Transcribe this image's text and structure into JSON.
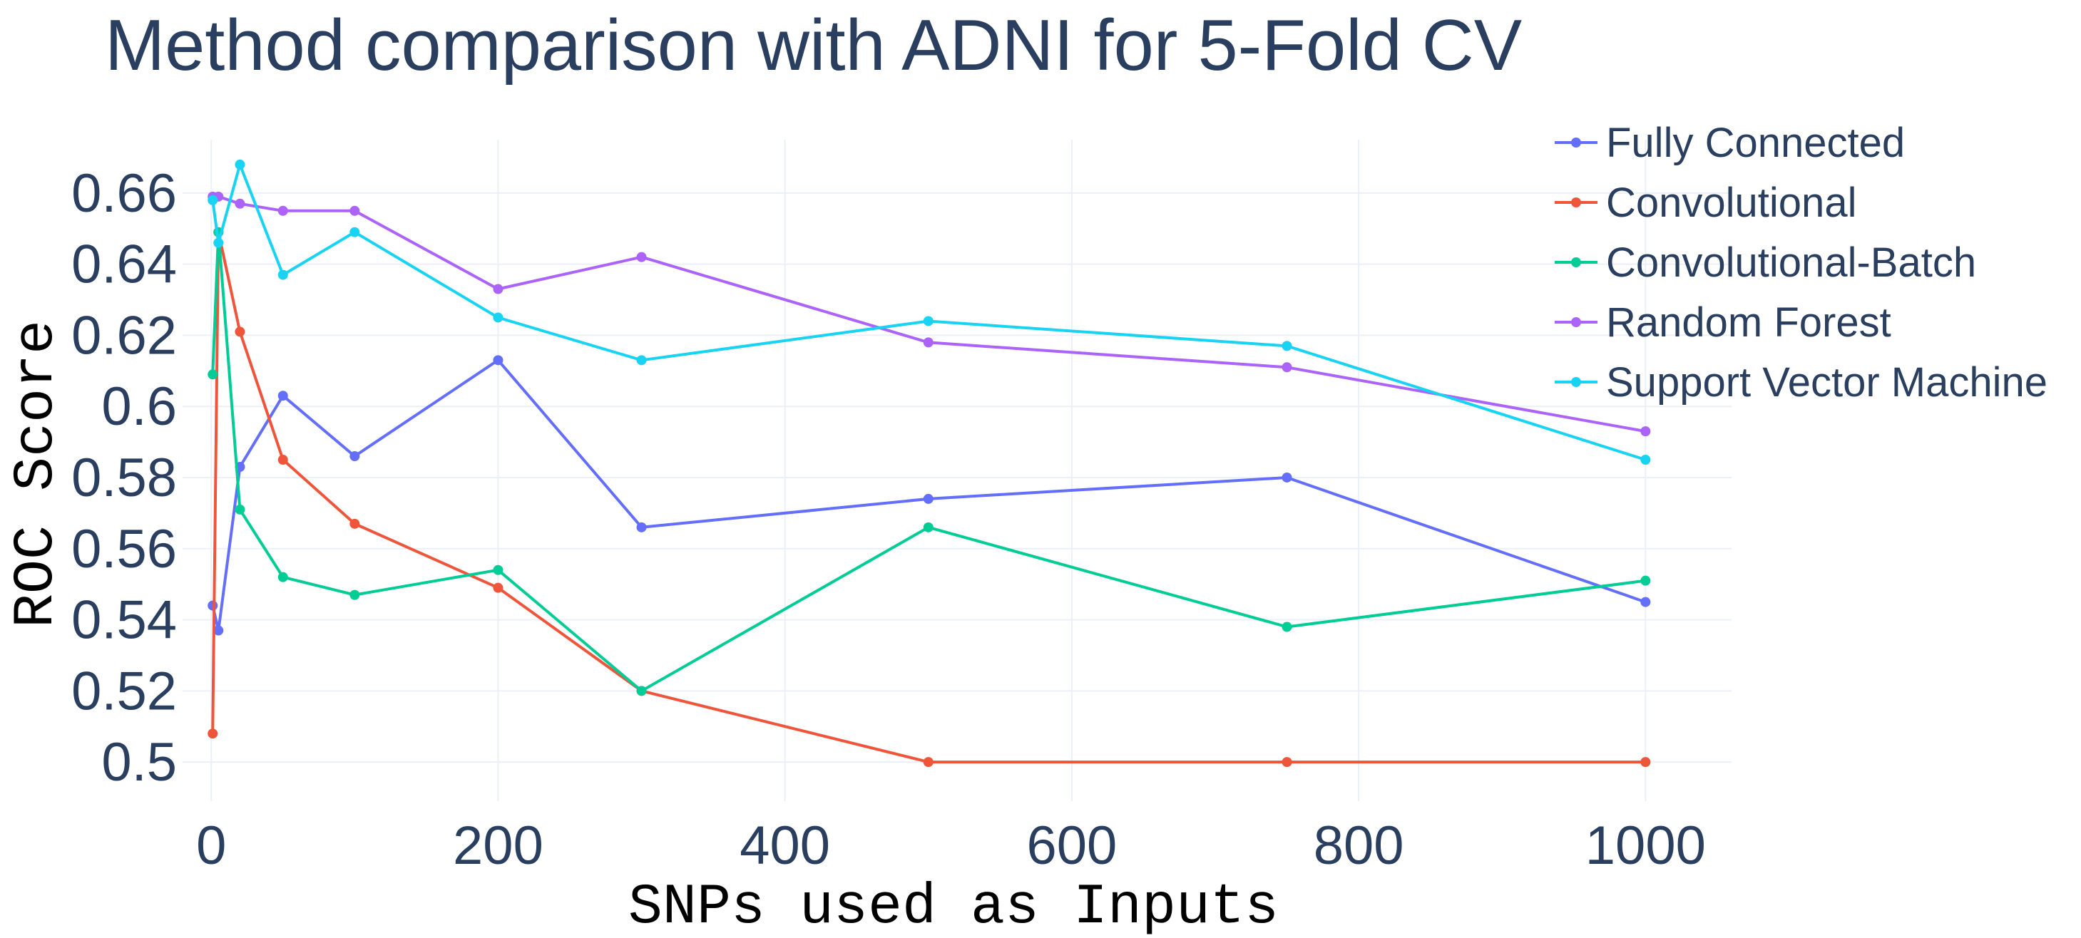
{
  "chart_data": {
    "type": "line",
    "title": "Method comparison with ADNI for 5-Fold CV",
    "xlabel": "SNPs used as Inputs",
    "ylabel": "ROC Score",
    "xlim": [
      -20,
      1060
    ],
    "ylim": [
      0.489,
      0.675
    ],
    "xticks": [
      0,
      200,
      400,
      600,
      800,
      1000
    ],
    "xtick_labels": [
      "0",
      "200",
      "400",
      "600",
      "800",
      "1000"
    ],
    "yticks": [
      0.5,
      0.52,
      0.54,
      0.56,
      0.58,
      0.6,
      0.62,
      0.64,
      0.66
    ],
    "ytick_labels": [
      "0.5",
      "0.52",
      "0.54",
      "0.56",
      "0.58",
      "0.6",
      "0.62",
      "0.64",
      "0.66"
    ],
    "grid": true,
    "legend_position": "top-right",
    "x": [
      1,
      5,
      20,
      50,
      100,
      200,
      300,
      500,
      750,
      1000
    ],
    "series": [
      {
        "name": "Fully Connected",
        "color": "#636efa",
        "values": [
          0.544,
          0.537,
          0.583,
          0.603,
          0.586,
          0.613,
          0.566,
          0.574,
          0.58,
          0.545
        ]
      },
      {
        "name": "Convolutional",
        "color": "#ef553b",
        "values": [
          0.508,
          0.649,
          0.621,
          0.585,
          0.567,
          0.549,
          0.52,
          0.5,
          0.5,
          0.5
        ]
      },
      {
        "name": "Convolutional-Batch",
        "color": "#00cc96",
        "values": [
          0.609,
          0.649,
          0.571,
          0.552,
          0.547,
          0.554,
          0.52,
          0.566,
          0.538,
          0.551
        ]
      },
      {
        "name": "Random Forest",
        "color": "#ab63fa",
        "values": [
          0.659,
          0.659,
          0.657,
          0.655,
          0.655,
          0.633,
          0.642,
          0.618,
          0.611,
          0.593
        ]
      },
      {
        "name": "Support Vector Machine",
        "color": "#19d3f3",
        "values": [
          0.658,
          0.646,
          0.668,
          0.637,
          0.649,
          0.625,
          0.613,
          0.624,
          0.617,
          0.585
        ]
      }
    ]
  }
}
